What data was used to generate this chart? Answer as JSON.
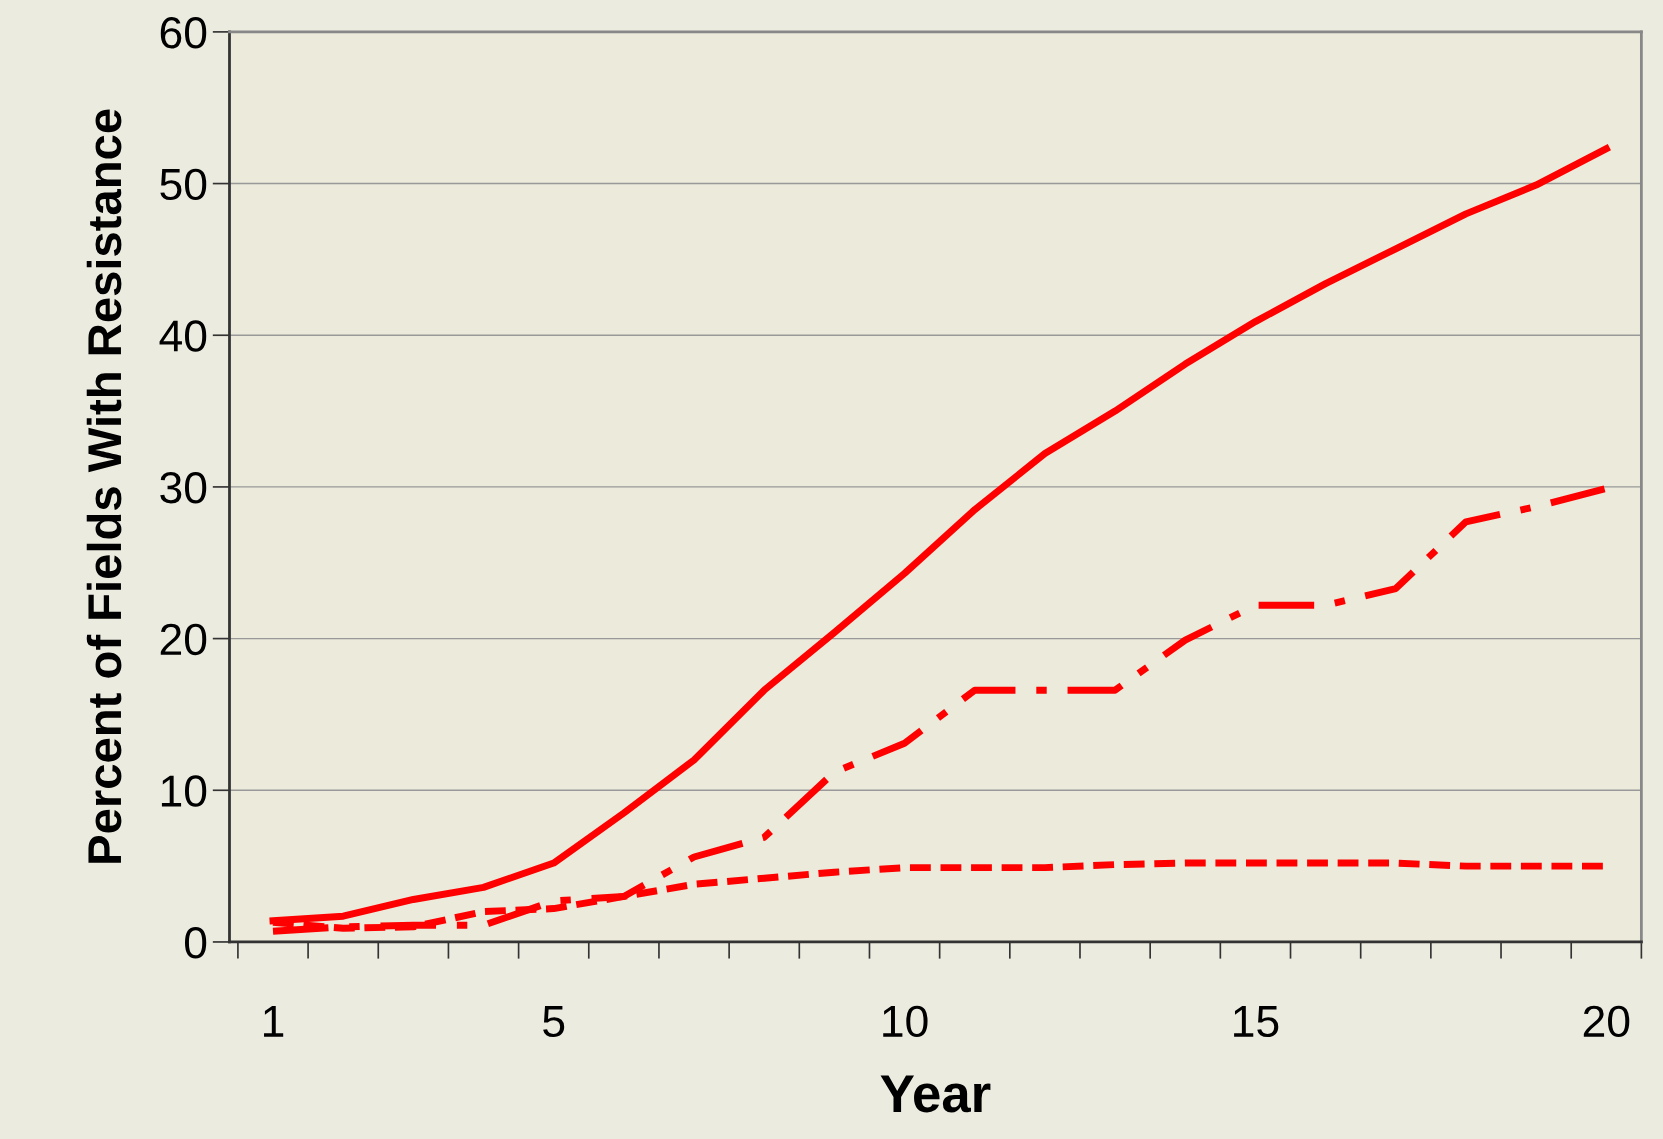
{
  "chart_data": {
    "type": "line",
    "xlabel": "Year",
    "ylabel": "Percent of Fields With Resistance",
    "categories": [
      "1",
      null,
      null,
      null,
      "5",
      null,
      null,
      null,
      null,
      "10",
      null,
      null,
      null,
      null,
      "15",
      null,
      null,
      null,
      null,
      "20"
    ],
    "series": [
      {
        "color": "#ff0000",
        "line_style": "solid",
        "values": [
          1.4,
          1.7,
          2.8,
          3.6,
          5.2,
          8.5,
          12.0,
          16.6,
          20.4,
          24.3,
          28.5,
          32.2,
          35.0,
          38.1,
          40.9,
          43.4,
          45.7,
          48.0,
          49.9,
          52.3
        ]
      },
      {
        "color": "#ff0000",
        "line_style": "dashed",
        "values": [
          0.7,
          1.0,
          1.1,
          1.1,
          2.7,
          3.0,
          5.6,
          6.9,
          11.2,
          13.1,
          16.6,
          16.6,
          16.6,
          19.9,
          22.2,
          22.2,
          23.3,
          27.7,
          28.7,
          29.9
        ]
      },
      {
        "color": "#ff0000",
        "line_style": "dotted",
        "values": [
          1.3,
          0.9,
          1.0,
          2.0,
          2.2,
          3.0,
          3.8,
          4.2,
          4.6,
          4.9,
          4.9,
          4.9,
          5.1,
          5.2,
          5.2,
          5.2,
          5.2,
          5.0,
          5.0,
          5.0
        ]
      }
    ],
    "ylim": [
      0,
      60
    ],
    "yticks": [
      0,
      10,
      20,
      30,
      40,
      50,
      60
    ],
    "grid": "y",
    "legend": false,
    "marker": "none"
  }
}
